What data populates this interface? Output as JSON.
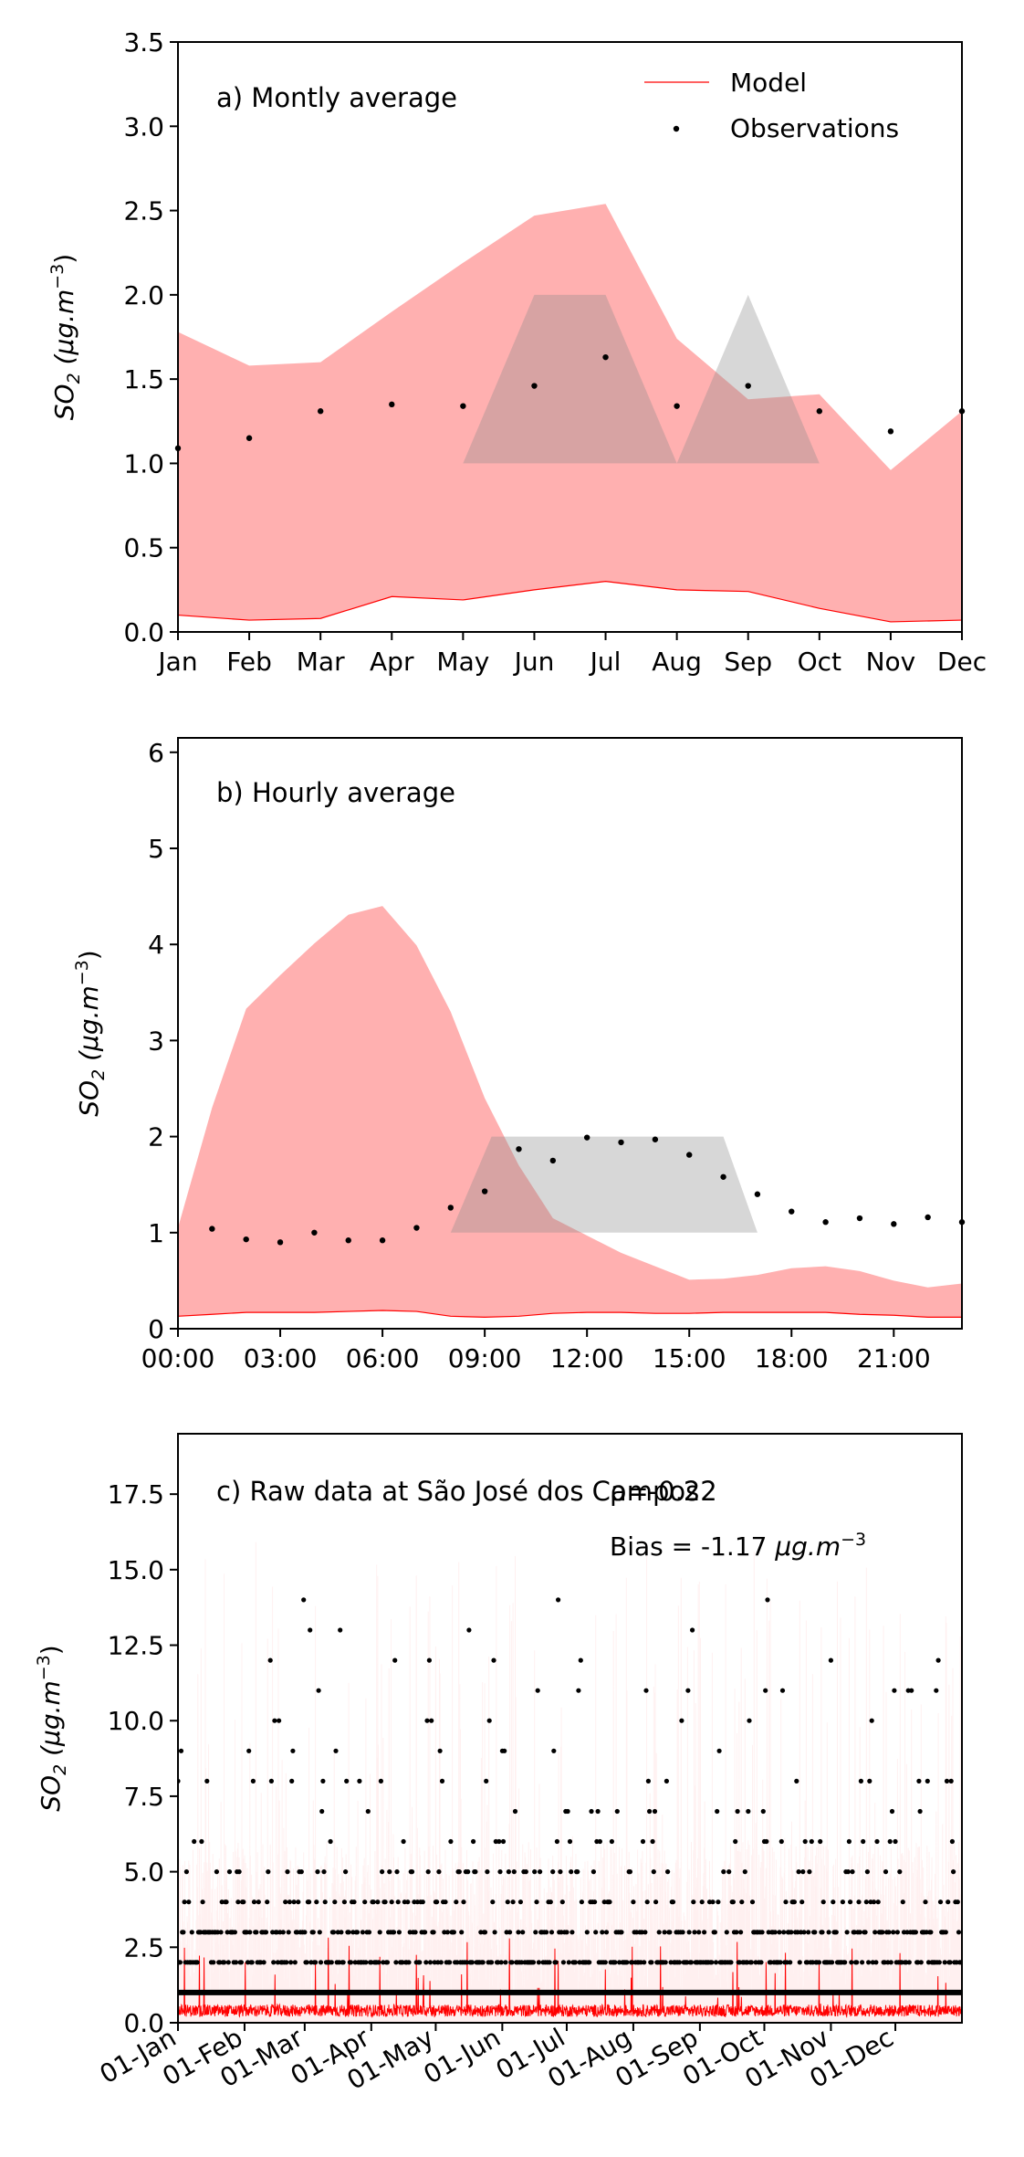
{
  "chart_data": [
    {
      "type": "area",
      "panel_label": "a) Montly average",
      "ylabel_base": "SO",
      "ylabel_sub": "2",
      "ylabel_units": "(μg.m",
      "ylabel_exp": "−3",
      "ylim": [
        0,
        3.5
      ],
      "yticks": [
        "0.0",
        "0.5",
        "1.0",
        "1.5",
        "2.0",
        "2.5",
        "3.0",
        "3.5"
      ],
      "ytick_values": [
        0,
        0.5,
        1.0,
        1.5,
        2.0,
        2.5,
        3.0,
        3.5
      ],
      "xlim": [
        0,
        11
      ],
      "categories": [
        "Jan",
        "Feb",
        "Mar",
        "Apr",
        "May",
        "Jun",
        "Jul",
        "Aug",
        "Sep",
        "Oct",
        "Nov",
        "Dec"
      ],
      "legend": {
        "position": "top-right",
        "model_label": "Model",
        "obs_label": "Observations"
      },
      "series": [
        {
          "name": "Model",
          "kind": "band",
          "color": "#ff0000",
          "lower": [
            0.1,
            0.07,
            0.08,
            0.21,
            0.19,
            0.25,
            0.3,
            0.25,
            0.24,
            0.14,
            0.06,
            0.07
          ],
          "upper": [
            1.78,
            1.58,
            1.6,
            1.9,
            2.19,
            2.47,
            2.54,
            1.74,
            1.38,
            1.41,
            0.96,
            1.31
          ]
        },
        {
          "name": "Observations",
          "kind": "points",
          "color": "#000000",
          "x": [
            0,
            1,
            2,
            3,
            4,
            5,
            6,
            7,
            8,
            9,
            10,
            11
          ],
          "y": [
            1.09,
            1.15,
            1.31,
            1.35,
            1.34,
            1.46,
            1.63,
            1.34,
            1.46,
            1.31,
            1.19,
            1.31
          ]
        }
      ],
      "gray_shapes": [
        {
          "points": [
            [
              4,
              1.0
            ],
            [
              5,
              2.0
            ],
            [
              6,
              2.0
            ],
            [
              7,
              1.0
            ]
          ]
        },
        {
          "points": [
            [
              7,
              1.0
            ],
            [
              8,
              2.0
            ],
            [
              9,
              1.0
            ]
          ]
        }
      ]
    },
    {
      "type": "area",
      "panel_label": "b) Hourly average",
      "ylabel_base": "SO",
      "ylabel_sub": "2",
      "ylabel_units": "(μg.m",
      "ylabel_exp": "−3",
      "ylim": [
        0,
        6.15
      ],
      "yticks": [
        "0",
        "1",
        "2",
        "3",
        "4",
        "5",
        "6"
      ],
      "ytick_values": [
        0,
        1,
        2,
        3,
        4,
        5,
        6
      ],
      "xlim": [
        0,
        23
      ],
      "xticks": [
        "00:00",
        "03:00",
        "06:00",
        "09:00",
        "12:00",
        "15:00",
        "18:00",
        "21:00"
      ],
      "xtick_values": [
        0,
        3,
        6,
        9,
        12,
        15,
        18,
        21
      ],
      "series": [
        {
          "name": "Model",
          "kind": "band",
          "color": "#ff0000",
          "x": [
            0,
            1,
            2,
            3,
            4,
            5,
            6,
            7,
            8,
            9,
            10,
            11,
            12,
            13,
            14,
            15,
            16,
            17,
            18,
            19,
            20,
            21,
            22,
            23
          ],
          "lower": [
            0.13,
            0.15,
            0.17,
            0.17,
            0.17,
            0.18,
            0.19,
            0.18,
            0.13,
            0.12,
            0.13,
            0.16,
            0.17,
            0.17,
            0.16,
            0.16,
            0.17,
            0.17,
            0.17,
            0.17,
            0.15,
            0.14,
            0.12,
            0.12
          ],
          "upper": [
            1.05,
            2.3,
            3.33,
            3.68,
            4.01,
            4.31,
            4.4,
            3.99,
            3.3,
            2.4,
            1.7,
            1.15,
            0.97,
            0.79,
            0.65,
            0.51,
            0.52,
            0.56,
            0.63,
            0.65,
            0.6,
            0.5,
            0.43,
            0.47
          ]
        },
        {
          "name": "Observations",
          "kind": "points",
          "color": "#000000",
          "x": [
            1,
            2,
            3,
            4,
            5,
            6,
            7,
            8,
            9,
            10,
            11,
            12,
            13,
            14,
            15,
            16,
            17,
            18,
            19,
            20,
            21,
            22,
            23
          ],
          "y": [
            1.04,
            0.93,
            0.9,
            1.0,
            0.92,
            0.92,
            1.05,
            1.26,
            1.43,
            1.87,
            1.75,
            1.99,
            1.94,
            1.97,
            1.81,
            1.58,
            1.4,
            1.22,
            1.11,
            1.15,
            1.09,
            1.16,
            1.11
          ]
        }
      ],
      "gray_shapes": [
        {
          "points": [
            [
              8,
              1.0
            ],
            [
              9.2,
              2.0
            ],
            [
              16,
              2.0
            ],
            [
              17,
              1.0
            ]
          ]
        }
      ]
    },
    {
      "type": "scatter",
      "panel_label": "c) Raw data at São José dos Campos",
      "rho_label": "ρ=-0.22",
      "bias_text": "Bias = -1.17 ",
      "bias_units": "μg.m",
      "bias_exp": "−3",
      "ylabel_base": "SO",
      "ylabel_sub": "2",
      "ylabel_units": "(μg.m",
      "ylabel_exp": "−3",
      "ylim": [
        0,
        19.5
      ],
      "yticks": [
        "0.0",
        "2.5",
        "5.0",
        "7.5",
        "10.0",
        "12.5",
        "15.0",
        "17.5"
      ],
      "ytick_values": [
        0,
        2.5,
        5.0,
        7.5,
        10.0,
        12.5,
        15.0,
        17.5
      ],
      "xlim": [
        0,
        365
      ],
      "xticks": [
        "01-Jan",
        "01-Feb",
        "01-Mar",
        "01-Apr",
        "01-May",
        "01-Jun",
        "01-Jul",
        "01-Aug",
        "01-Sep",
        "01-Oct",
        "01-Nov",
        "01-Dec"
      ],
      "xtick_values": [
        0,
        31,
        59,
        90,
        120,
        151,
        181,
        212,
        243,
        273,
        304,
        334
      ],
      "observed_levels": [
        1,
        2,
        3,
        4,
        5,
        6,
        7,
        8,
        9,
        10,
        11,
        12,
        13,
        14
      ],
      "series": [
        {
          "name": "Model",
          "kind": "hourly-line",
          "color": "#ff0000"
        },
        {
          "name": "Observations",
          "kind": "points",
          "color": "#000000"
        }
      ]
    }
  ]
}
